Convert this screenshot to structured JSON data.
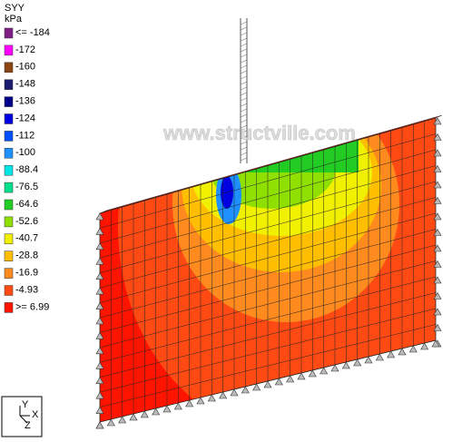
{
  "legend": {
    "title": "SYY",
    "unit": "kPa",
    "items": [
      {
        "label": "<= -184",
        "color": "#7f1f86"
      },
      {
        "label": "-172",
        "color": "#ff00ff"
      },
      {
        "label": "-160",
        "color": "#8b4513"
      },
      {
        "label": "-148",
        "color": "#1c1c6e"
      },
      {
        "label": "-136",
        "color": "#00008b"
      },
      {
        "label": "-124",
        "color": "#0000e0"
      },
      {
        "label": "-112",
        "color": "#0050ff"
      },
      {
        "label": "-100",
        "color": "#1e90ff"
      },
      {
        "label": "-88.4",
        "color": "#00e5e5"
      },
      {
        "label": "-76.5",
        "color": "#00e08a"
      },
      {
        "label": "-64.6",
        "color": "#22cc22"
      },
      {
        "label": "-52.6",
        "color": "#8fe000"
      },
      {
        "label": "-40.7",
        "color": "#f0f000"
      },
      {
        "label": "-28.8",
        "color": "#ffbf00"
      },
      {
        "label": "-16.9",
        "color": "#ff8a1e"
      },
      {
        "label": "-4.93",
        "color": "#ff4a14"
      },
      {
        "label": ">= 6.99",
        "color": "#ff1400"
      }
    ]
  },
  "watermark": "www.structville.com",
  "axes": {
    "y": "Y",
    "x": "X",
    "z": "Z"
  }
}
